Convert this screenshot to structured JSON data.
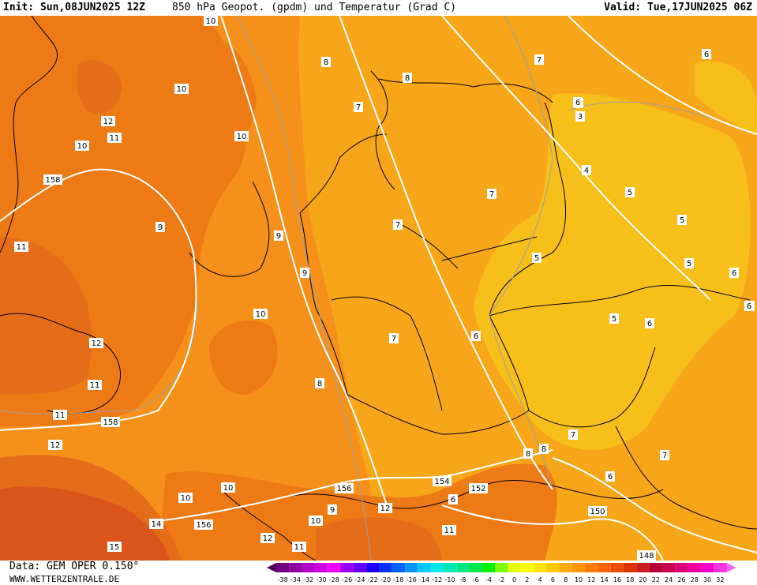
{
  "header": {
    "init_label": "Init: Sun,08JUN2025 12Z",
    "title": "850 hPa Geopot. (gpdm) und Temperatur (Grad C)",
    "valid_label": "Valid: Tue,17JUN2025 06Z"
  },
  "footer": {
    "data_source": "Data: GEM OPER 0.150°",
    "website": "WWW.WETTERZENTRALE.DE"
  },
  "colors": {
    "temp_4_6": "#f6bf1a",
    "temp_6_8": "#f7a61a",
    "temp_8_10": "#f5911a",
    "temp_10_12": "#ee7a15",
    "temp_12_14": "#e56d1a",
    "temp_14_16": "#da541c",
    "geopotential_line": "#ffffff",
    "isotherm_line": "#a0a0a0",
    "border_line": "#000000"
  },
  "map": {
    "temperature_labels": [
      {
        "text": "10"
      },
      {
        "text": "10"
      },
      {
        "text": "10"
      },
      {
        "text": "12"
      },
      {
        "text": "11"
      },
      {
        "text": "10"
      },
      {
        "text": "9"
      },
      {
        "text": "11"
      },
      {
        "text": "9"
      },
      {
        "text": "10"
      },
      {
        "text": "12"
      },
      {
        "text": "11"
      },
      {
        "text": "11"
      },
      {
        "text": "12"
      },
      {
        "text": "9"
      },
      {
        "text": "8"
      },
      {
        "text": "8"
      },
      {
        "text": "8"
      },
      {
        "text": "7"
      },
      {
        "text": "7"
      },
      {
        "text": "7"
      },
      {
        "text": "7"
      },
      {
        "text": "7"
      },
      {
        "text": "6"
      },
      {
        "text": "6"
      },
      {
        "text": "4"
      },
      {
        "text": "5"
      },
      {
        "text": "5"
      },
      {
        "text": "5"
      },
      {
        "text": "6"
      },
      {
        "text": "5"
      },
      {
        "text": "5"
      },
      {
        "text": "6"
      },
      {
        "text": "6"
      },
      {
        "text": "7"
      },
      {
        "text": "7"
      },
      {
        "text": "6"
      },
      {
        "text": "6"
      },
      {
        "text": "8"
      },
      {
        "text": "8"
      },
      {
        "text": "10"
      },
      {
        "text": "10"
      },
      {
        "text": "9"
      },
      {
        "text": "12"
      },
      {
        "text": "10"
      },
      {
        "text": "11"
      },
      {
        "text": "11"
      },
      {
        "text": "12"
      },
      {
        "text": "14"
      },
      {
        "text": "15"
      },
      {
        "text": "6"
      },
      {
        "text": "6"
      },
      {
        "text": "6"
      },
      {
        "text": "3"
      }
    ],
    "geopotential_labels": [
      {
        "text": "158"
      },
      {
        "text": "158"
      },
      {
        "text": "156"
      },
      {
        "text": "156"
      },
      {
        "text": "154"
      },
      {
        "text": "152"
      },
      {
        "text": "150"
      },
      {
        "text": "148"
      }
    ]
  },
  "legend": {
    "colors": [
      "#4b0055",
      "#6f007f",
      "#8c00a0",
      "#b400c8",
      "#d200e6",
      "#f000ff",
      "#9b00ff",
      "#6400ff",
      "#1e00ff",
      "#0032ff",
      "#0064ff",
      "#0096ff",
      "#00c8ff",
      "#00e6e6",
      "#00e6b4",
      "#00e682",
      "#00e650",
      "#00f000",
      "#7dff00",
      "#e6ff00",
      "#ffff00",
      "#ffe600",
      "#ffc800",
      "#ffaa00",
      "#ff9600",
      "#ff7d00",
      "#ff6400",
      "#f04b00",
      "#dc3200",
      "#c81e1e",
      "#b40032",
      "#c80050",
      "#dc0078",
      "#f000a0",
      "#ff00c8",
      "#ff32dc",
      "#ff64f0"
    ],
    "labels": [
      "-38",
      "-34",
      "-32",
      "-30",
      "-28",
      "-26",
      "-24",
      "-22",
      "-20",
      "-18",
      "-16",
      "-14",
      "-12",
      "-10",
      "-8",
      "-6",
      "-4",
      "-2",
      "0",
      "2",
      "4",
      "6",
      "8",
      "10",
      "12",
      "14",
      "16",
      "18",
      "20",
      "22",
      "24",
      "26",
      "28",
      "30",
      "32"
    ]
  }
}
